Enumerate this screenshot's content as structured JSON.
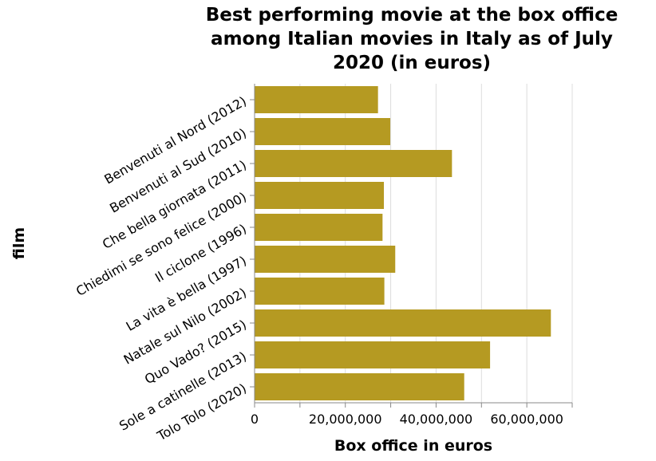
{
  "chart_data": {
    "type": "bar",
    "orientation": "horizontal",
    "title_lines": [
      "Best performing movie at the box office",
      "among Italian movies in Italy as of July",
      "2020 (in euros)"
    ],
    "xlabel": "Box office in euros",
    "ylabel": "film",
    "xlim": [
      0,
      70000000
    ],
    "xticks": [
      0,
      20000000,
      40000000,
      60000000
    ],
    "xtick_labels": [
      "0",
      "20,000,000",
      "40,000,000",
      "60,000,000"
    ],
    "grid": true,
    "bar_color": "#b59a22",
    "categories": [
      "Benvenuti al Nord (2012)",
      "Benvenuti al Sud (2010)",
      "Che bella giornata (2011)",
      "Chiedimi se sono felice (2000)",
      "Il ciclone (1996)",
      "La vita è bella (1997)",
      "Natale sul Nilo (2002)",
      "Quo Vado? (2015)",
      "Sole a catinelle (2013)",
      "Tolo Tolo (2020)"
    ],
    "values": [
      27200000,
      29900000,
      43500000,
      28500000,
      28200000,
      31000000,
      28600000,
      65300000,
      51900000,
      46200000
    ]
  }
}
